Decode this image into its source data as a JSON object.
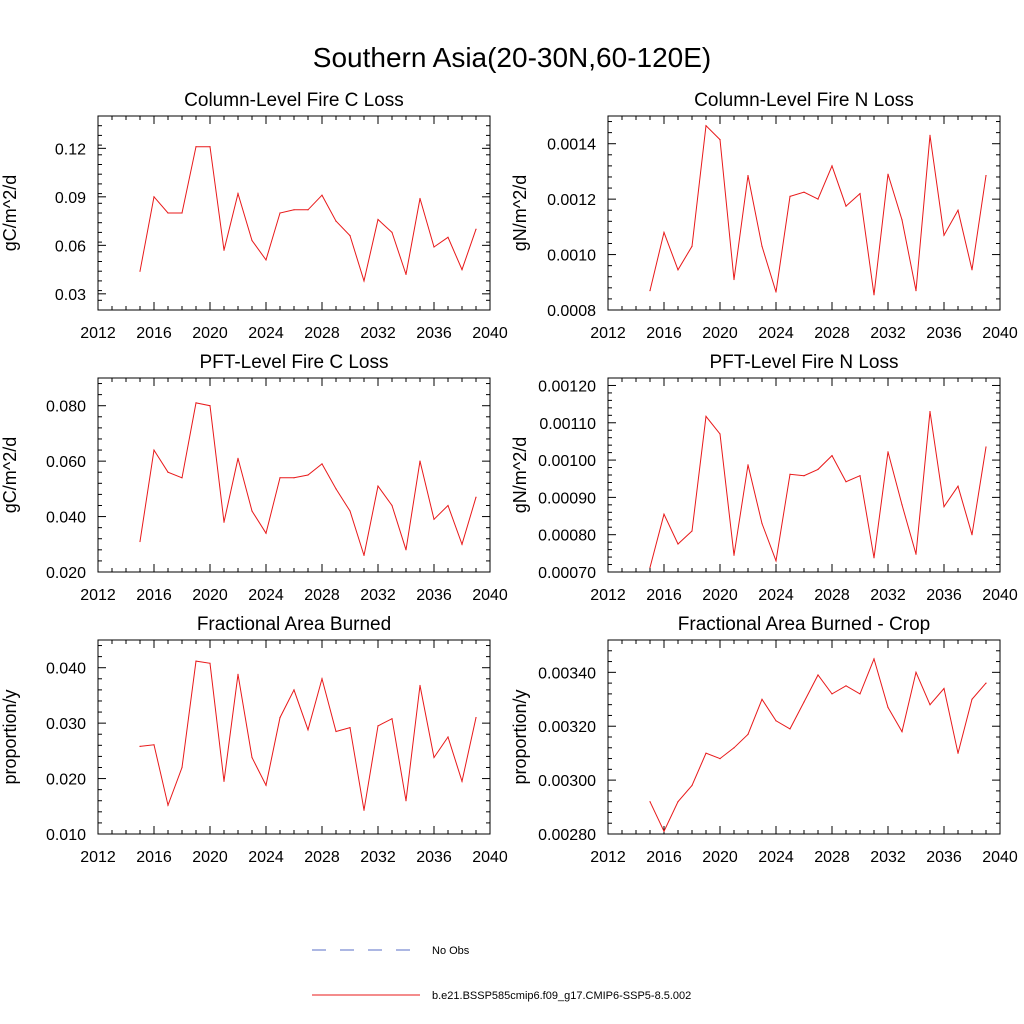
{
  "figure": {
    "title": "Southern Asia(20-30N,60-120E)"
  },
  "legend": {
    "obs_label": "No Obs",
    "obs_color": "#5a6fc7",
    "model_label": "b.e21.BSSP585cmip6.f09_g17.CMIP6-SSP5-8.5.002",
    "model_color": "#e8191a"
  },
  "chart_data": [
    {
      "type": "line",
      "title": "Column-Level Fire C Loss",
      "xlabel": "",
      "ylabel": "gC/m^2/d",
      "xlim": [
        2012,
        2040
      ],
      "ylim": [
        0.02,
        0.14
      ],
      "xticks": [
        2012,
        2016,
        2020,
        2024,
        2028,
        2032,
        2036,
        2040
      ],
      "xtick_labels": [
        "2012",
        "2016",
        "2020",
        "2024",
        "2028",
        "2032",
        "2036",
        "2040"
      ],
      "yticks": [
        0.03,
        0.06,
        0.09,
        0.12
      ],
      "ytick_labels": [
        "0.03",
        "0.06",
        "0.09",
        "0.12"
      ],
      "x": [
        2015,
        2016,
        2017,
        2018,
        2019,
        2020,
        2021,
        2022,
        2023,
        2024,
        2025,
        2026,
        2027,
        2028,
        2029,
        2030,
        2031,
        2032,
        2033,
        2034,
        2035,
        2036,
        2037,
        2038,
        2039
      ],
      "series": [
        {
          "name": "b.e21.BSSP585cmip6.f09_g17.CMIP6-SSP5-8.5.002",
          "values": [
            0.044,
            0.09,
            0.08,
            0.08,
            0.121,
            0.121,
            0.057,
            0.092,
            0.063,
            0.051,
            0.08,
            0.082,
            0.082,
            0.091,
            0.075,
            0.066,
            0.038,
            0.076,
            0.068,
            0.042,
            0.089,
            0.059,
            0.065,
            0.045,
            0.07
          ]
        }
      ]
    },
    {
      "type": "line",
      "title": "Column-Level Fire N Loss",
      "xlabel": "",
      "ylabel": "gN/m^2/d",
      "xlim": [
        2012,
        2040
      ],
      "ylim": [
        0.0008,
        0.0015
      ],
      "xticks": [
        2012,
        2016,
        2020,
        2024,
        2028,
        2032,
        2036,
        2040
      ],
      "xtick_labels": [
        "2012",
        "2016",
        "2020",
        "2024",
        "2028",
        "2032",
        "2036",
        "2040"
      ],
      "yticks": [
        0.0008,
        0.001,
        0.0012,
        0.0014
      ],
      "ytick_labels": [
        "0.0008",
        "0.0010",
        "0.0012",
        "0.0014"
      ],
      "x": [
        2015,
        2016,
        2017,
        2018,
        2019,
        2020,
        2021,
        2022,
        2023,
        2024,
        2025,
        2026,
        2027,
        2028,
        2029,
        2030,
        2031,
        2032,
        2033,
        2034,
        2035,
        2036,
        2037,
        2038,
        2039
      ],
      "series": [
        {
          "name": "b.e21.BSSP585cmip6.f09_g17.CMIP6-SSP5-8.5.002",
          "values": [
            0.00087,
            0.00108,
            0.000945,
            0.00103,
            0.001465,
            0.001415,
            0.00091,
            0.001285,
            0.00103,
            0.000865,
            0.00121,
            0.001225,
            0.0012,
            0.00132,
            0.001175,
            0.00122,
            0.000855,
            0.00129,
            0.001125,
            0.00087,
            0.00143,
            0.00107,
            0.00116,
            0.000945,
            0.001285
          ]
        }
      ]
    },
    {
      "type": "line",
      "title": "PFT-Level Fire C Loss",
      "xlabel": "",
      "ylabel": "gC/m^2/d",
      "xlim": [
        2012,
        2040
      ],
      "ylim": [
        0.02,
        0.09
      ],
      "xticks": [
        2012,
        2016,
        2020,
        2024,
        2028,
        2032,
        2036,
        2040
      ],
      "xtick_labels": [
        "2012",
        "2016",
        "2020",
        "2024",
        "2028",
        "2032",
        "2036",
        "2040"
      ],
      "yticks": [
        0.02,
        0.04,
        0.06,
        0.08
      ],
      "ytick_labels": [
        "0.020",
        "0.040",
        "0.060",
        "0.080"
      ],
      "x": [
        2015,
        2016,
        2017,
        2018,
        2019,
        2020,
        2021,
        2022,
        2023,
        2024,
        2025,
        2026,
        2027,
        2028,
        2029,
        2030,
        2031,
        2032,
        2033,
        2034,
        2035,
        2036,
        2037,
        2038,
        2039
      ],
      "series": [
        {
          "name": "b.e21.BSSP585cmip6.f09_g17.CMIP6-SSP5-8.5.002",
          "values": [
            0.031,
            0.064,
            0.056,
            0.054,
            0.081,
            0.08,
            0.038,
            0.061,
            0.042,
            0.034,
            0.054,
            0.054,
            0.055,
            0.059,
            0.05,
            0.042,
            0.026,
            0.051,
            0.044,
            0.028,
            0.06,
            0.039,
            0.044,
            0.03,
            0.047
          ]
        }
      ]
    },
    {
      "type": "line",
      "title": "PFT-Level Fire N Loss",
      "xlabel": "",
      "ylabel": "gN/m^2/d",
      "xlim": [
        2012,
        2040
      ],
      "ylim": [
        0.0007,
        0.00122
      ],
      "xticks": [
        2012,
        2016,
        2020,
        2024,
        2028,
        2032,
        2036,
        2040
      ],
      "xtick_labels": [
        "2012",
        "2016",
        "2020",
        "2024",
        "2028",
        "2032",
        "2036",
        "2040"
      ],
      "yticks": [
        0.0007,
        0.0008,
        0.0009,
        0.001,
        0.0011,
        0.0012
      ],
      "ytick_labels": [
        "0.00070",
        "0.00080",
        "0.00090",
        "0.00100",
        "0.00110",
        "0.00120"
      ],
      "x": [
        2015,
        2016,
        2017,
        2018,
        2019,
        2020,
        2021,
        2022,
        2023,
        2024,
        2025,
        2026,
        2027,
        2028,
        2029,
        2030,
        2031,
        2032,
        2033,
        2034,
        2035,
        2036,
        2037,
        2038,
        2039
      ],
      "series": [
        {
          "name": "b.e21.BSSP585cmip6.f09_g17.CMIP6-SSP5-8.5.002",
          "values": [
            0.000712,
            0.000855,
            0.000775,
            0.00081,
            0.001117,
            0.00107,
            0.000745,
            0.000987,
            0.00083,
            0.00073,
            0.000962,
            0.000958,
            0.000975,
            0.001012,
            0.000942,
            0.000958,
            0.000738,
            0.001022,
            0.00088,
            0.000748,
            0.00113,
            0.000875,
            0.00093,
            0.0008,
            0.001035
          ]
        }
      ]
    },
    {
      "type": "line",
      "title": "Fractional Area Burned",
      "xlabel": "",
      "ylabel": "proportion/y",
      "xlim": [
        2012,
        2040
      ],
      "ylim": [
        0.01,
        0.045
      ],
      "xticks": [
        2012,
        2016,
        2020,
        2024,
        2028,
        2032,
        2036,
        2040
      ],
      "xtick_labels": [
        "2012",
        "2016",
        "2020",
        "2024",
        "2028",
        "2032",
        "2036",
        "2040"
      ],
      "yticks": [
        0.01,
        0.02,
        0.03,
        0.04
      ],
      "ytick_labels": [
        "0.010",
        "0.020",
        "0.030",
        "0.040"
      ],
      "x": [
        2015,
        2016,
        2017,
        2018,
        2019,
        2020,
        2021,
        2022,
        2023,
        2024,
        2025,
        2026,
        2027,
        2028,
        2029,
        2030,
        2031,
        2032,
        2033,
        2034,
        2035,
        2036,
        2037,
        2038,
        2039
      ],
      "series": [
        {
          "name": "b.e21.BSSP585cmip6.f09_g17.CMIP6-SSP5-8.5.002",
          "values": [
            0.0258,
            0.0261,
            0.0152,
            0.022,
            0.0412,
            0.0408,
            0.0195,
            0.0388,
            0.0238,
            0.0188,
            0.031,
            0.036,
            0.0288,
            0.038,
            0.0285,
            0.0292,
            0.0143,
            0.0295,
            0.0308,
            0.016,
            0.0368,
            0.0238,
            0.0275,
            0.0195,
            0.031
          ]
        }
      ]
    },
    {
      "type": "line",
      "title": "Fractional Area Burned - Crop",
      "xlabel": "",
      "ylabel": "proportion/y",
      "xlim": [
        2012,
        2040
      ],
      "ylim": [
        0.0028,
        0.00352
      ],
      "xticks": [
        2012,
        2016,
        2020,
        2024,
        2028,
        2032,
        2036,
        2040
      ],
      "xtick_labels": [
        "2012",
        "2016",
        "2020",
        "2024",
        "2028",
        "2032",
        "2036",
        "2040"
      ],
      "yticks": [
        0.0028,
        0.003,
        0.0032,
        0.0034
      ],
      "ytick_labels": [
        "0.00280",
        "0.00300",
        "0.00320",
        "0.00340"
      ],
      "x": [
        2015,
        2016,
        2017,
        2018,
        2019,
        2020,
        2021,
        2022,
        2023,
        2024,
        2025,
        2026,
        2027,
        2028,
        2029,
        2030,
        2031,
        2032,
        2033,
        2034,
        2035,
        2036,
        2037,
        2038,
        2039
      ],
      "series": [
        {
          "name": "b.e21.BSSP585cmip6.f09_g17.CMIP6-SSP5-8.5.002",
          "values": [
            0.00292,
            0.00281,
            0.00292,
            0.00298,
            0.0031,
            0.00308,
            0.00312,
            0.00317,
            0.0033,
            0.00322,
            0.00319,
            0.00329,
            0.00339,
            0.00332,
            0.00335,
            0.00332,
            0.00345,
            0.00327,
            0.00318,
            0.0034,
            0.00328,
            0.00334,
            0.0031,
            0.0033,
            0.00336
          ]
        }
      ]
    }
  ]
}
